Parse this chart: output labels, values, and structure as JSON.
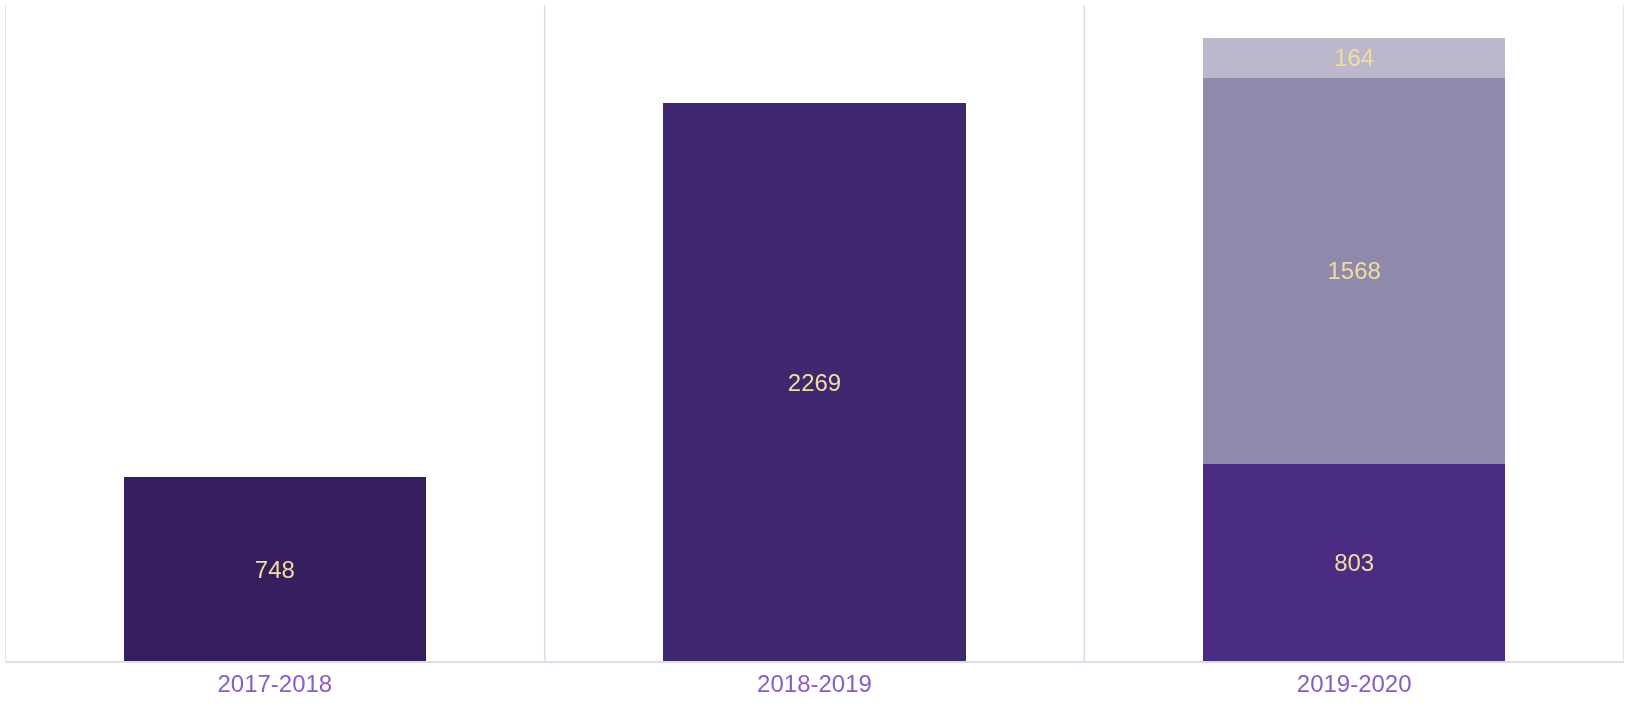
{
  "chart_data": {
    "type": "bar",
    "stacked": true,
    "categories": [
      "2017-2018",
      "2018-2019",
      "2019-2020"
    ],
    "series": [
      {
        "colors": [
          "#361f5f",
          "#3f2870",
          "#4a2c83"
        ],
        "values": [
          748,
          2269,
          803
        ]
      },
      {
        "color": "#8f89ab",
        "values": [
          null,
          null,
          1568
        ]
      },
      {
        "color": "#bcb7ca",
        "values": [
          null,
          null,
          164
        ]
      }
    ],
    "data_labels": true,
    "grid": "x",
    "tick_labels": "x"
  }
}
